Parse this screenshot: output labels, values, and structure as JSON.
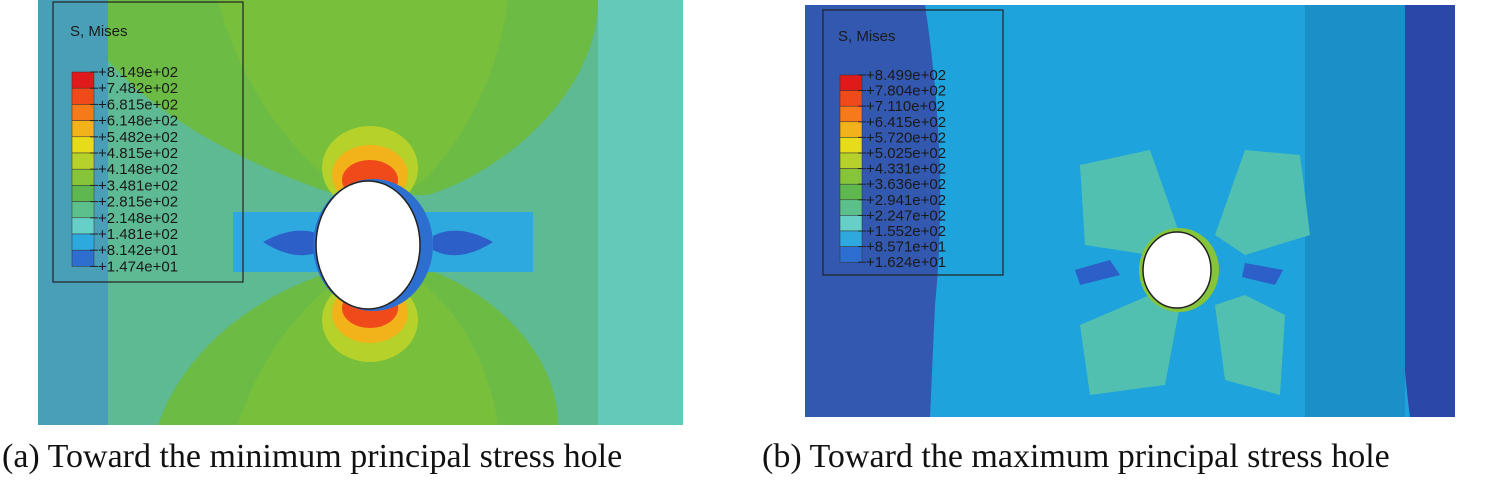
{
  "panels": [
    {
      "id": "a",
      "caption": "(a) Toward the minimum principal stress hole",
      "legend": {
        "title": "S, Mises",
        "values": [
          "+8.149e+02",
          "+7.482e+02",
          "+6.815e+02",
          "+6.148e+02",
          "+5.482e+02",
          "+4.815e+02",
          "+4.148e+02",
          "+3.481e+02",
          "+2.815e+02",
          "+2.148e+02",
          "+1.481e+02",
          "+8.142e+01",
          "+1.474e+01"
        ]
      }
    },
    {
      "id": "b",
      "caption": "(b) Toward the maximum principal stress hole",
      "legend": {
        "title": "S, Mises",
        "values": [
          "+8.499e+02",
          "+7.804e+02",
          "+7.110e+02",
          "+6.415e+02",
          "+5.720e+02",
          "+5.025e+02",
          "+4.331e+02",
          "+3.636e+02",
          "+2.941e+02",
          "+2.247e+02",
          "+1.552e+02",
          "+8.571e+01",
          "+1.624e+01"
        ]
      }
    }
  ],
  "colors": {
    "contour_scale": [
      "#e01a1a",
      "#f04a1a",
      "#f77a1a",
      "#f2b21a",
      "#e6dc1a",
      "#b6d12a",
      "#86c53a",
      "#5fb84f",
      "#5cc08d",
      "#66cfc8",
      "#2ea9e0",
      "#2d6fd0",
      "#3350a8"
    ]
  }
}
